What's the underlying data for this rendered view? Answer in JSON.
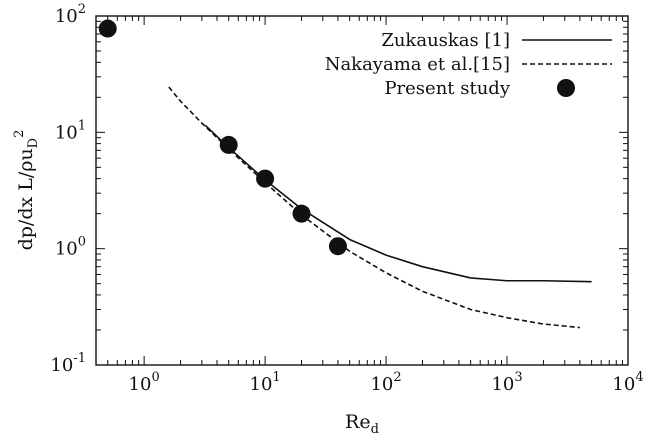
{
  "chart_data": {
    "type": "line",
    "xscale": "log",
    "yscale": "log",
    "xlim": [
      0.4,
      10000
    ],
    "ylim": [
      0.1,
      100
    ],
    "grid": false,
    "legend_position": "top-right",
    "xlabel": {
      "base": "Re",
      "sub": "d"
    },
    "ylabel": {
      "text": "dp/dx L/ρu",
      "sub": "D",
      "sup": "2"
    },
    "x_ticks": [
      {
        "value": 1,
        "base": "10",
        "exp": "0"
      },
      {
        "value": 10,
        "base": "10",
        "exp": "1"
      },
      {
        "value": 100,
        "base": "10",
        "exp": "2"
      },
      {
        "value": 1000,
        "base": "10",
        "exp": "3"
      },
      {
        "value": 10000,
        "base": "10",
        "exp": "4"
      }
    ],
    "y_ticks": [
      {
        "value": 0.1,
        "base": "10",
        "exp": "-1"
      },
      {
        "value": 1,
        "base": "10",
        "exp": "0"
      },
      {
        "value": 10,
        "base": "10",
        "exp": "1"
      },
      {
        "value": 100,
        "base": "10",
        "exp": "2"
      }
    ],
    "series": [
      {
        "name": "Zukauskas [1]",
        "style": "solid",
        "color": "#111111",
        "x": [
          3.2,
          5,
          10,
          20,
          50,
          100,
          200,
          500,
          1000,
          2000,
          5000
        ],
        "y": [
          11.5,
          7.4,
          3.9,
          2.2,
          1.2,
          0.88,
          0.7,
          0.56,
          0.53,
          0.53,
          0.52
        ]
      },
      {
        "name": "Nakayama et al.[15]",
        "style": "dashed",
        "color": "#111111",
        "x": [
          1.6,
          2,
          3,
          5,
          10,
          20,
          50,
          100,
          200,
          500,
          1000,
          2000,
          4000
        ],
        "y": [
          24.5,
          18.5,
          12,
          7.2,
          3.7,
          1.95,
          0.95,
          0.62,
          0.43,
          0.3,
          0.255,
          0.225,
          0.21
        ]
      },
      {
        "name": "Present study",
        "style": "markers",
        "color": "#111111",
        "x": [
          0.5,
          5,
          10,
          20,
          40
        ],
        "y": [
          78,
          7.8,
          4.0,
          2.0,
          1.05
        ]
      }
    ]
  }
}
